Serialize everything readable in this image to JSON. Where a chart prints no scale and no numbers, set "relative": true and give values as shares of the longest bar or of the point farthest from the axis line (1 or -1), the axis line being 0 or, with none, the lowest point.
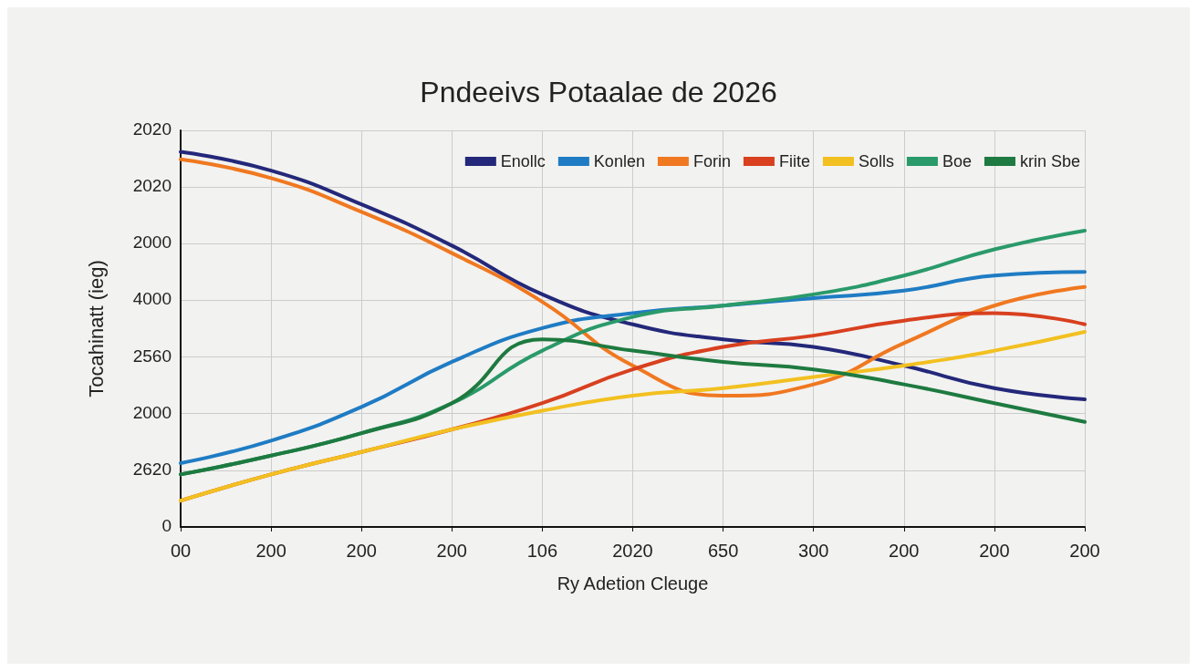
{
  "chart_data": {
    "type": "line",
    "title": "Pndeeivs Potaalae de 2026",
    "xlabel": "Ry Adetion Cleuge",
    "ylabel": "Tocahinatt (ieg)",
    "categories": [
      "00",
      "200",
      "200",
      "200",
      "106",
      "2020",
      "650",
      "300",
      "200",
      "200",
      "200"
    ],
    "relative": true,
    "annotations": [
      "0",
      "2620",
      "2000",
      "2560",
      "4000",
      "2000",
      "2020",
      "2020"
    ],
    "grid": true,
    "legend": "top right",
    "line_style": "solid",
    "series": [
      {
        "name": "Enollc",
        "color": "#24287a",
        "values": [
          1.0,
          0.95,
          0.86,
          0.75,
          0.62,
          0.54,
          0.5,
          0.48,
          0.43,
          0.37,
          0.34
        ]
      },
      {
        "name": "Konlen",
        "color": "#1f7cc4",
        "values": [
          0.17,
          0.23,
          0.32,
          0.44,
          0.53,
          0.57,
          0.59,
          0.61,
          0.63,
          0.67,
          0.68
        ]
      },
      {
        "name": "Forin",
        "color": "#f07820",
        "values": [
          0.98,
          0.93,
          0.84,
          0.73,
          0.6,
          0.43,
          0.35,
          0.38,
          0.49,
          0.59,
          0.64
        ]
      },
      {
        "name": "Fiite",
        "color": "#d8401f",
        "values": [
          0.07,
          0.14,
          0.2,
          0.26,
          0.33,
          0.42,
          0.48,
          0.51,
          0.55,
          0.57,
          0.54
        ]
      },
      {
        "name": "Solls",
        "color": "#f2c020",
        "values": [
          0.07,
          0.14,
          0.2,
          0.26,
          0.31,
          0.35,
          0.37,
          0.4,
          0.43,
          0.47,
          0.52
        ]
      },
      {
        "name": "Boe",
        "color": "#2a9a6a",
        "values": [
          0.14,
          0.19,
          0.25,
          0.33,
          0.47,
          0.56,
          0.59,
          0.62,
          0.67,
          0.74,
          0.79
        ]
      },
      {
        "name": "krin Sbe",
        "color": "#1e7a40",
        "values": [
          0.14,
          0.19,
          0.25,
          0.33,
          0.5,
          0.47,
          0.44,
          0.42,
          0.38,
          0.33,
          0.28
        ]
      }
    ]
  }
}
